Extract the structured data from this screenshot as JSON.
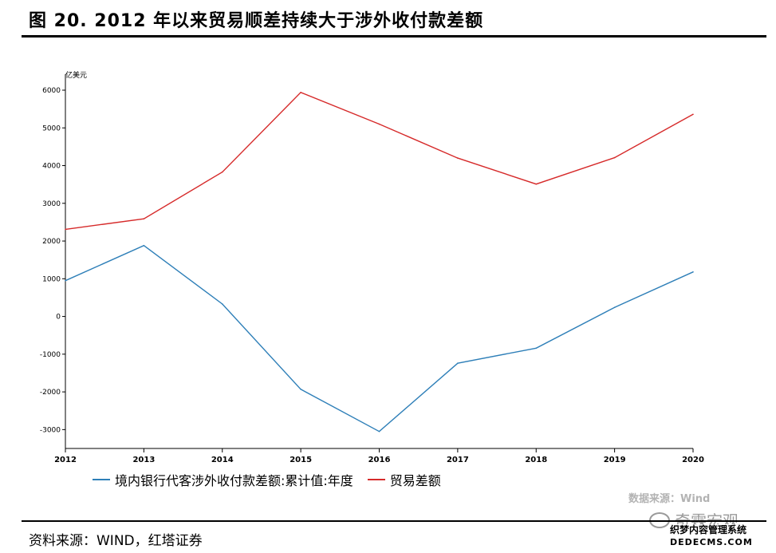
{
  "title": "图 20. 2012 年以来贸易顺差持续大于涉外收付款差额",
  "source": "资料来源：WIND，红塔证券",
  "data_note": "数据来源：Wind",
  "watermark": {
    "name": "奇霖宏观",
    "stamp_line1": "织梦内容管理系统",
    "stamp_line2": "DEDECMS.COM"
  },
  "chart_data": {
    "type": "line",
    "title": "",
    "ylabel": "亿美元",
    "xlabel": "",
    "ylim": [
      -3500,
      6000
    ],
    "yticks": [
      6000,
      5000,
      4000,
      3000,
      2000,
      1000,
      0,
      -1000,
      -2000,
      -3000
    ],
    "x": [
      "2012",
      "2013",
      "2014",
      "2015",
      "2016",
      "2017",
      "2018",
      "2019",
      "2020"
    ],
    "grid": false,
    "legend_position": "bottom",
    "series": [
      {
        "name": "境内银行代客涉外收付款差额:累计值:年度",
        "color": "#2e7fb8",
        "values": [
          950,
          1880,
          330,
          -1930,
          -3050,
          -1240,
          -840,
          240,
          1180
        ]
      },
      {
        "name": "贸易差额",
        "color": "#d62a2a",
        "values": [
          2310,
          2590,
          3830,
          5940,
          5100,
          4200,
          3510,
          4210,
          5360
        ]
      }
    ]
  }
}
